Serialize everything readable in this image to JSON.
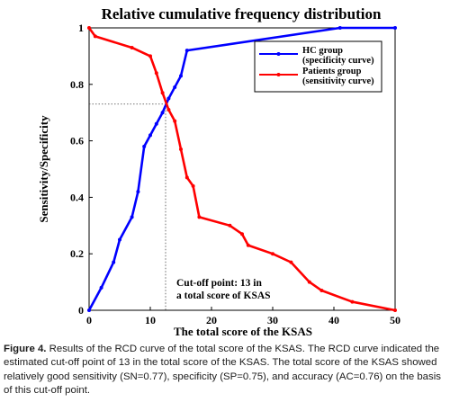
{
  "chart_data": {
    "type": "line",
    "title": "Relative cumulative frequency distribution",
    "xlabel": "The total score of the KSAS",
    "ylabel": "Sensitivity/Specificity",
    "xlim": [
      0,
      50
    ],
    "ylim": [
      0,
      1
    ],
    "x_ticks": [
      "0",
      "10",
      "20",
      "30",
      "40",
      "50"
    ],
    "y_ticks": [
      "0",
      "0.2",
      "0.4",
      "0.6",
      "0.8",
      "1"
    ],
    "grid": false,
    "legend_position": "top-right",
    "series": [
      {
        "name": "HC group (specificity curve)",
        "legend_lines": [
          "HC group",
          "(specificity curve)"
        ],
        "color": "#0000ff",
        "x": [
          0,
          2,
          4,
          5,
          7,
          8,
          9,
          10,
          11,
          12,
          13,
          14,
          15,
          16,
          41,
          50
        ],
        "y": [
          0,
          0.08,
          0.17,
          0.25,
          0.33,
          0.42,
          0.58,
          0.62,
          0.66,
          0.7,
          0.75,
          0.79,
          0.83,
          0.92,
          1.0,
          1.0
        ]
      },
      {
        "name": "Patients group (sensitivity curve)",
        "legend_lines": [
          "Patients group",
          "(sensitivity curve)"
        ],
        "color": "#ff0000",
        "x": [
          0,
          1,
          7,
          10,
          11,
          12,
          13,
          14,
          15,
          16,
          17,
          18,
          23,
          25,
          26,
          30,
          33,
          36,
          38,
          43,
          50
        ],
        "y": [
          1.0,
          0.97,
          0.93,
          0.9,
          0.84,
          0.77,
          0.71,
          0.67,
          0.57,
          0.47,
          0.44,
          0.33,
          0.3,
          0.27,
          0.23,
          0.2,
          0.17,
          0.1,
          0.07,
          0.03,
          0.0
        ]
      }
    ],
    "cutoff": {
      "x": 12.5,
      "y": 0.73
    },
    "annotation_lines": [
      "Cut-off point: 13 in",
      "a total score of KSAS"
    ]
  },
  "caption": {
    "lead": "Figure 4.",
    "text": " Results of the RCD curve of the total score of the KSAS. The RCD curve indicated the estimated cut-off point of 13 in the total score of the KSAS. The total score of the KSAS showed relatively good sensitivity (SN=0.77), specificity (SP=0.75), and accuracy (AC=0.76) on the basis of this cut-off point."
  }
}
